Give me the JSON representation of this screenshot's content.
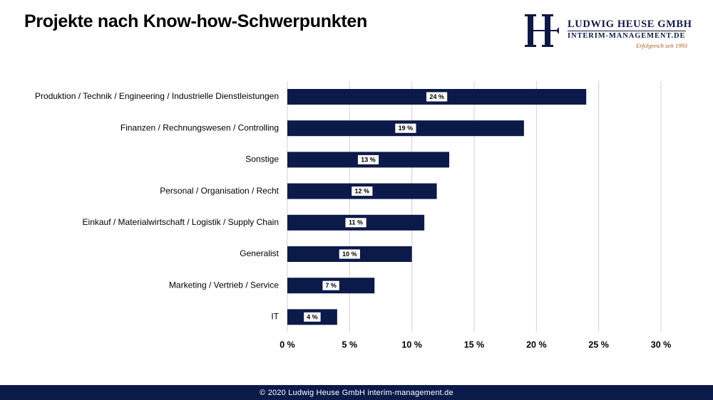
{
  "page": {
    "title": "Projekte nach Know-how-Schwerpunkten",
    "footer": "© 2020 Ludwig Heuse GmbH interim-management.de"
  },
  "logo": {
    "name": "LUDWIG HEUSE GMBH",
    "url": "INTERIM-MANAGEMENT.DE",
    "tagline": "Erfolgreich seit 1993"
  },
  "colors": {
    "bar": "#0c1a4a",
    "grid": "#d0d0d0",
    "footer": "#0c1a4a",
    "tagline": "#b0571f"
  },
  "chart_data": {
    "type": "bar",
    "orientation": "horizontal",
    "categories": [
      "Produktion / Technik / Engineering / Industrielle Dienstleistungen",
      "Finanzen / Rechnungswesen / Controlling",
      "Sonstige",
      "Personal / Organisation / Recht",
      "Einkauf / Materialwirtschaft / Logistik / Supply Chain",
      "Generalist",
      "Marketing / Vertrieb / Service",
      "IT"
    ],
    "values": [
      24,
      19,
      13,
      12,
      11,
      10,
      7,
      4
    ],
    "data_labels": [
      "24 %",
      "19 %",
      "13 %",
      "12 %",
      "11 %",
      "10 %",
      "7 %",
      "4 %"
    ],
    "xlim": [
      0,
      30
    ],
    "xticks": [
      0,
      5,
      10,
      15,
      20,
      25,
      30
    ],
    "xtick_labels": [
      "0 %",
      "5 %",
      "10 %",
      "15 %",
      "20 %",
      "25 %",
      "30 %"
    ],
    "grid": "vertical",
    "legend": "none"
  }
}
